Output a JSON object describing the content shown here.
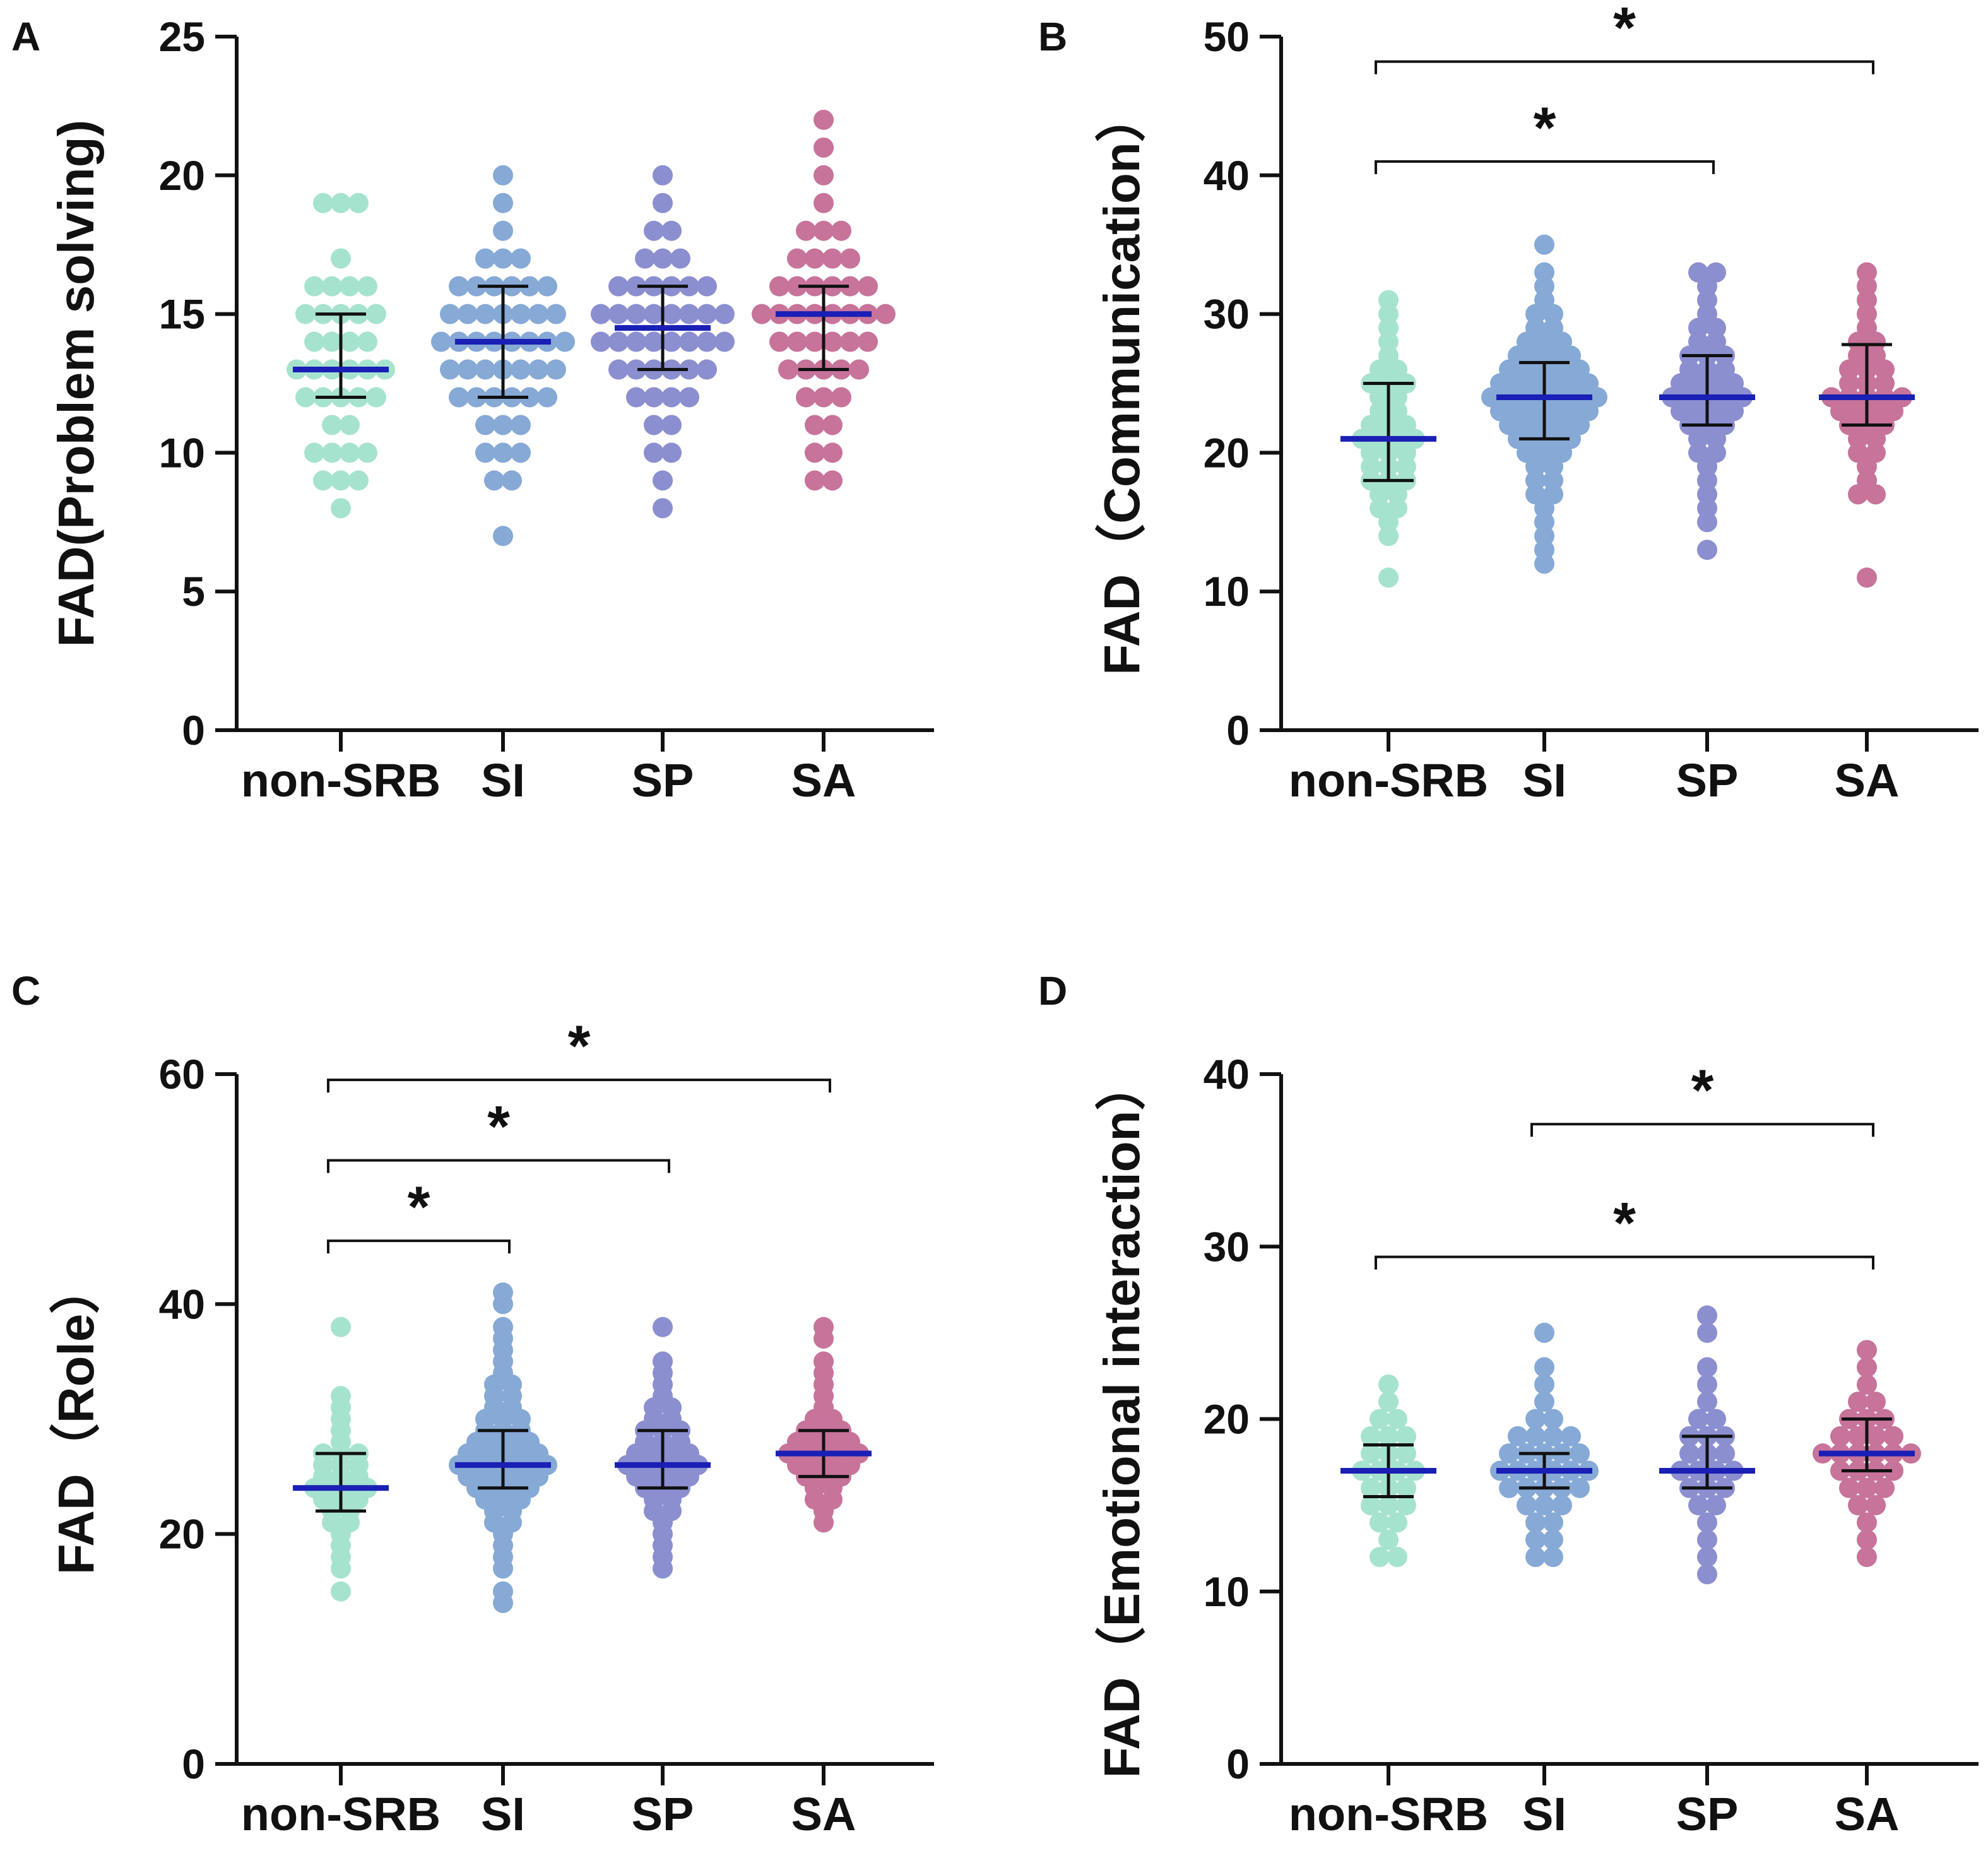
{
  "figure_type": "multi-panel dot plot",
  "colors": {
    "non-SRB": "#a6e3cf",
    "SI": "#86a9d6",
    "SP": "#8b8fd0",
    "SA": "#c7739a",
    "mean_line": "#1a1fb5",
    "error_bar": "#111111",
    "axis": "#111111"
  },
  "chart_data": [
    {
      "panel": "A",
      "type": "scatter",
      "ylabel": "FAD(Problem solving)",
      "ylim": [
        0,
        25
      ],
      "yticks": [
        0,
        5,
        10,
        15,
        20,
        25
      ],
      "categories": [
        "non-SRB",
        "SI",
        "SP",
        "SA"
      ],
      "groups": [
        {
          "name": "non-SRB",
          "center": 13,
          "lower": 12,
          "upper": 15,
          "values": [
            19,
            19,
            19,
            17,
            16,
            16,
            16,
            16,
            15,
            15,
            15,
            15,
            15,
            14,
            14,
            14,
            14,
            13,
            13,
            13,
            13,
            13,
            13,
            12,
            12,
            12,
            12,
            12,
            11,
            11,
            10,
            10,
            10,
            10,
            9,
            9,
            9,
            8
          ]
        },
        {
          "name": "SI",
          "center": 14,
          "lower": 12,
          "upper": 16,
          "values": [
            20,
            19,
            18,
            17,
            17,
            17,
            16,
            16,
            16,
            16,
            16,
            16,
            15,
            15,
            15,
            15,
            15,
            15,
            15,
            14,
            14,
            14,
            14,
            14,
            14,
            14,
            14,
            13,
            13,
            13,
            13,
            13,
            13,
            13,
            12,
            12,
            12,
            12,
            12,
            12,
            11,
            11,
            11,
            10,
            10,
            10,
            9,
            9,
            7
          ]
        },
        {
          "name": "SP",
          "center": 14.5,
          "lower": 13,
          "upper": 16,
          "values": [
            20,
            19,
            18,
            18,
            17,
            17,
            17,
            16,
            16,
            16,
            16,
            16,
            16,
            15,
            15,
            15,
            15,
            15,
            15,
            15,
            15,
            14,
            14,
            14,
            14,
            14,
            14,
            14,
            14,
            13,
            13,
            13,
            13,
            13,
            13,
            12,
            12,
            12,
            12,
            11,
            11,
            10,
            10,
            9,
            8
          ]
        },
        {
          "name": "SA",
          "center": 15,
          "lower": 13,
          "upper": 16,
          "values": [
            22,
            21,
            20,
            19,
            18,
            18,
            18,
            17,
            17,
            17,
            17,
            16,
            16,
            16,
            16,
            16,
            16,
            15,
            15,
            15,
            15,
            15,
            15,
            15,
            15,
            14,
            14,
            14,
            14,
            14,
            14,
            13,
            13,
            13,
            13,
            13,
            12,
            12,
            12,
            11,
            11,
            10,
            10,
            9,
            9
          ]
        }
      ],
      "significance": []
    },
    {
      "panel": "B",
      "type": "scatter",
      "ylabel": "FAD（Communication）",
      "ylim": [
        0,
        50
      ],
      "yticks": [
        0,
        10,
        20,
        30,
        40,
        50
      ],
      "categories": [
        "non-SRB",
        "SI",
        "SP",
        "SA"
      ],
      "groups": [
        {
          "name": "non-SRB",
          "center": 21,
          "lower": 18,
          "upper": 25,
          "values": [
            31,
            30,
            29,
            28,
            27,
            26,
            26,
            25,
            25,
            25,
            24,
            24,
            23,
            23,
            22,
            22,
            22,
            21,
            21,
            21,
            21,
            20,
            20,
            20,
            19,
            19,
            19,
            18,
            18,
            18,
            17,
            17,
            16,
            16,
            15,
            14,
            11
          ]
        },
        {
          "name": "SI",
          "center": 24,
          "lower": 21,
          "upper": 26.5,
          "values": [
            35,
            33,
            32,
            31,
            30,
            30,
            29,
            29,
            28,
            28,
            28,
            27,
            27,
            27,
            27,
            26,
            26,
            26,
            26,
            26,
            25,
            25,
            25,
            25,
            25,
            25,
            24,
            24,
            24,
            24,
            24,
            24,
            24,
            23,
            23,
            23,
            23,
            23,
            23,
            22,
            22,
            22,
            22,
            22,
            21,
            21,
            21,
            21,
            20,
            20,
            20,
            19,
            19,
            18,
            18,
            17,
            17,
            16,
            15,
            14,
            13,
            12
          ]
        },
        {
          "name": "SP",
          "center": 24,
          "lower": 22,
          "upper": 27,
          "values": [
            33,
            33,
            32,
            31,
            30,
            29,
            29,
            28,
            28,
            27,
            27,
            27,
            26,
            26,
            26,
            25,
            25,
            25,
            25,
            24,
            24,
            24,
            24,
            24,
            23,
            23,
            23,
            23,
            22,
            22,
            22,
            21,
            21,
            20,
            20,
            19,
            18,
            17,
            16,
            15,
            13
          ]
        },
        {
          "name": "SA",
          "center": 24,
          "lower": 22,
          "upper": 27.8,
          "values": [
            33,
            32,
            31,
            30,
            29,
            28,
            28,
            27,
            27,
            26,
            26,
            26,
            25,
            25,
            25,
            24,
            24,
            24,
            24,
            24,
            23,
            23,
            23,
            23,
            22,
            22,
            22,
            21,
            21,
            20,
            20,
            19,
            18,
            17,
            17,
            11
          ]
        }
      ],
      "significance": [
        {
          "from": "non-SRB",
          "to": "SP",
          "label": "*",
          "y": 41
        },
        {
          "from": "non-SRB",
          "to": "SA",
          "label": "*",
          "y": 48.2
        }
      ]
    },
    {
      "panel": "C",
      "type": "scatter",
      "ylabel": "FAD（Role）",
      "ylim": [
        0,
        60
      ],
      "yticks": [
        0,
        20,
        40,
        60
      ],
      "categories": [
        "non-SRB",
        "SI",
        "SP",
        "SA"
      ],
      "groups": [
        {
          "name": "non-SRB",
          "center": 24,
          "lower": 22,
          "upper": 27,
          "values": [
            38,
            32,
            31,
            30,
            29,
            28,
            27,
            27,
            27,
            26,
            26,
            26,
            25,
            25,
            25,
            24,
            24,
            24,
            24,
            23,
            23,
            23,
            22,
            22,
            21,
            21,
            20,
            19,
            18,
            17,
            15
          ]
        },
        {
          "name": "SI",
          "center": 26,
          "lower": 24,
          "upper": 29,
          "values": [
            41,
            40,
            38,
            37,
            36,
            35,
            34,
            33,
            33,
            32,
            32,
            31,
            31,
            30,
            30,
            30,
            29,
            29,
            29,
            28,
            28,
            28,
            28,
            27,
            27,
            27,
            27,
            27,
            26,
            26,
            26,
            26,
            26,
            26,
            25,
            25,
            25,
            25,
            25,
            24,
            24,
            24,
            24,
            23,
            23,
            23,
            22,
            22,
            21,
            21,
            20,
            19,
            18,
            17,
            15,
            14
          ]
        },
        {
          "name": "SP",
          "center": 26,
          "lower": 24,
          "upper": 29,
          "values": [
            38,
            35,
            34,
            33,
            32,
            31,
            31,
            30,
            30,
            29,
            29,
            29,
            28,
            28,
            28,
            27,
            27,
            27,
            27,
            26,
            26,
            26,
            26,
            26,
            25,
            25,
            25,
            25,
            24,
            24,
            24,
            23,
            23,
            22,
            22,
            21,
            20,
            19,
            18,
            17
          ]
        },
        {
          "name": "SA",
          "center": 27,
          "lower": 25,
          "upper": 29,
          "values": [
            38,
            37,
            35,
            34,
            33,
            32,
            31,
            30,
            30,
            29,
            29,
            29,
            28,
            28,
            28,
            28,
            27,
            27,
            27,
            27,
            27,
            26,
            26,
            26,
            26,
            25,
            25,
            25,
            24,
            24,
            23,
            23,
            22,
            21
          ]
        }
      ],
      "significance": [
        {
          "from": "non-SRB",
          "to": "SI",
          "label": "*",
          "y": 45.5
        },
        {
          "from": "non-SRB",
          "to": "SP",
          "label": "*",
          "y": 52.5
        },
        {
          "from": "non-SRB",
          "to": "SA",
          "label": "*",
          "y": 59.5
        }
      ]
    },
    {
      "panel": "D",
      "type": "scatter",
      "ylabel": "FAD（Emotional interaction）",
      "ylim": [
        0,
        40
      ],
      "yticks": [
        0,
        10,
        20,
        30,
        40
      ],
      "categories": [
        "non-SRB",
        "SI",
        "SP",
        "SA"
      ],
      "groups": [
        {
          "name": "non-SRB",
          "center": 17,
          "lower": 15.5,
          "upper": 18.5,
          "values": [
            22,
            21,
            20,
            20,
            19,
            19,
            19,
            18,
            18,
            18,
            17,
            17,
            17,
            17,
            16,
            16,
            16,
            15,
            15,
            15,
            14,
            14,
            13,
            12,
            12
          ]
        },
        {
          "name": "SI",
          "center": 17,
          "lower": 16,
          "upper": 18,
          "values": [
            25,
            23,
            22,
            21,
            20,
            20,
            19,
            19,
            19,
            19,
            18,
            18,
            18,
            18,
            18,
            17,
            17,
            17,
            17,
            17,
            17,
            16,
            16,
            16,
            16,
            16,
            15,
            15,
            15,
            14,
            14,
            13,
            13,
            12,
            12
          ]
        },
        {
          "name": "SP",
          "center": 17,
          "lower": 16,
          "upper": 19,
          "values": [
            26,
            25,
            23,
            22,
            21,
            20,
            20,
            19,
            19,
            19,
            18,
            18,
            18,
            17,
            17,
            17,
            17,
            16,
            16,
            16,
            15,
            15,
            14,
            13,
            12,
            11
          ]
        },
        {
          "name": "SA",
          "center": 18,
          "lower": 17,
          "upper": 20,
          "values": [
            24,
            23,
            22,
            21,
            21,
            20,
            20,
            20,
            19,
            19,
            19,
            19,
            18,
            18,
            18,
            18,
            18,
            18,
            17,
            17,
            17,
            17,
            16,
            16,
            16,
            15,
            15,
            14,
            13,
            12
          ]
        }
      ],
      "significance": [
        {
          "from": "SI",
          "to": "SA",
          "label": "*",
          "y": 37.1
        },
        {
          "from": "non-SRB",
          "to": "SA",
          "label": "*",
          "y": 29.4
        }
      ]
    }
  ]
}
